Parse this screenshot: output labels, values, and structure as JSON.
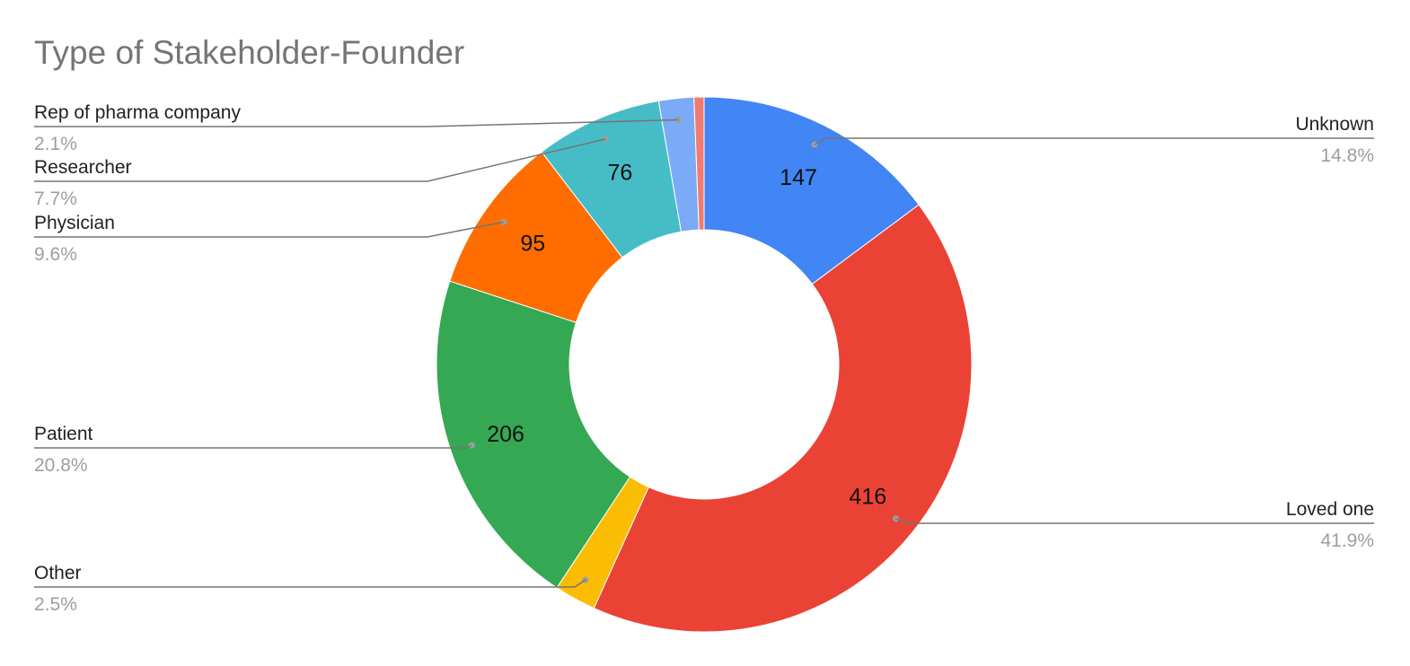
{
  "chart_data": {
    "type": "pie",
    "style": "donut",
    "title": "Type of Stakeholder-Founder",
    "slices": [
      {
        "label": "Unknown",
        "value": 147,
        "percent": "14.8%",
        "color": "#4285f4",
        "show_value": true,
        "show_label": true
      },
      {
        "label": "Loved one",
        "value": 416,
        "percent": "41.9%",
        "color": "#ea4335",
        "show_value": true,
        "show_label": true
      },
      {
        "label": "Other",
        "value": 25,
        "percent": "2.5%",
        "color": "#fbbc04",
        "show_value": false,
        "show_label": true
      },
      {
        "label": "Patient",
        "value": 206,
        "percent": "20.8%",
        "color": "#34a853",
        "show_value": true,
        "show_label": true
      },
      {
        "label": "Physician",
        "value": 95,
        "percent": "9.6%",
        "color": "#ff6d01",
        "show_value": true,
        "show_label": true
      },
      {
        "label": "Researcher",
        "value": 76,
        "percent": "7.7%",
        "color": "#46bdc6",
        "show_value": true,
        "show_label": true
      },
      {
        "label": "Rep of pharma company",
        "value": 21,
        "percent": "2.1%",
        "color": "#7baaf7",
        "show_value": false,
        "show_label": true
      },
      {
        "label": "",
        "value": 6,
        "percent": "",
        "color": "#f07b72",
        "show_value": false,
        "show_label": false
      }
    ],
    "legend": "none",
    "label_placement": "outside-with-leader-lines"
  }
}
